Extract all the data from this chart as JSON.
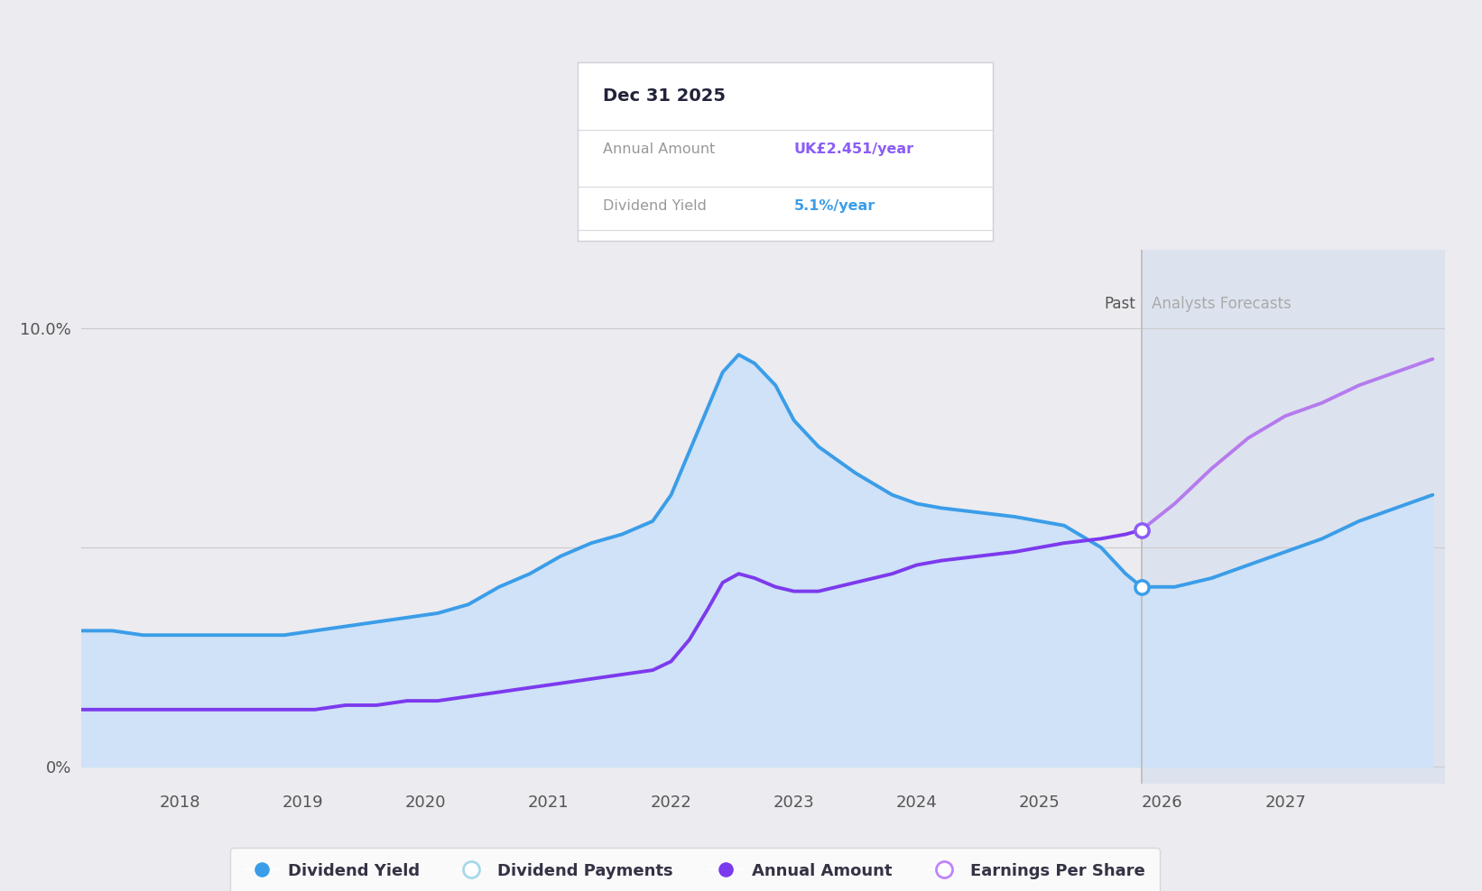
{
  "background_color": "#ebebf0",
  "plot_bg_color": "#ebebf0",
  "x_min": 2017.2,
  "x_max": 2028.3,
  "y_min": -0.004,
  "y_max": 0.118,
  "xtick_years": [
    2018,
    2019,
    2020,
    2021,
    2022,
    2023,
    2024,
    2025,
    2026,
    2027
  ],
  "past_line_x": 2025.83,
  "forecast_shade_color": "#dde3ee",
  "tooltip": {
    "date": "Dec 31 2025",
    "annual_amount_label": "Annual Amount",
    "annual_amount_value": "UK£2.451/year",
    "annual_amount_color": "#8b5cf6",
    "dividend_yield_label": "Dividend Yield",
    "dividend_yield_value": "5.1%/year",
    "dividend_yield_color": "#3b9de8"
  },
  "dividend_yield_color": "#3b9de8",
  "dividend_yield_fill_color": "#cfe2f7",
  "annual_amount_color_past": "#7c3aed",
  "annual_amount_color_forecast": "#b57bee",
  "dot_color_blue": "#3b9de8",
  "dot_color_purple": "#8b5cf6",
  "dividend_yield_x": [
    2017.2,
    2017.45,
    2017.7,
    2018.0,
    2018.3,
    2018.6,
    2018.85,
    2019.1,
    2019.35,
    2019.6,
    2019.85,
    2020.1,
    2020.35,
    2020.6,
    2020.85,
    2021.1,
    2021.35,
    2021.6,
    2021.85,
    2022.0,
    2022.15,
    2022.3,
    2022.42,
    2022.55,
    2022.68,
    2022.85,
    2023.0,
    2023.2,
    2023.5,
    2023.8,
    2024.0,
    2024.2,
    2024.5,
    2024.8,
    2025.0,
    2025.2,
    2025.5,
    2025.7,
    2025.83,
    2026.1,
    2026.4,
    2026.7,
    2027.0,
    2027.3,
    2027.6,
    2027.9,
    2028.2
  ],
  "dividend_yield_y": [
    0.031,
    0.031,
    0.03,
    0.03,
    0.03,
    0.03,
    0.03,
    0.031,
    0.032,
    0.033,
    0.034,
    0.035,
    0.037,
    0.041,
    0.044,
    0.048,
    0.051,
    0.053,
    0.056,
    0.062,
    0.072,
    0.082,
    0.09,
    0.094,
    0.092,
    0.087,
    0.079,
    0.073,
    0.067,
    0.062,
    0.06,
    0.059,
    0.058,
    0.057,
    0.056,
    0.055,
    0.05,
    0.044,
    0.041,
    0.041,
    0.043,
    0.046,
    0.049,
    0.052,
    0.056,
    0.059,
    0.062
  ],
  "annual_amount_x": [
    2017.2,
    2017.45,
    2017.7,
    2018.0,
    2018.3,
    2018.6,
    2018.85,
    2019.1,
    2019.35,
    2019.6,
    2019.85,
    2020.1,
    2020.35,
    2020.6,
    2020.85,
    2021.1,
    2021.35,
    2021.6,
    2021.85,
    2022.0,
    2022.15,
    2022.3,
    2022.42,
    2022.55,
    2022.68,
    2022.85,
    2023.0,
    2023.2,
    2023.5,
    2023.8,
    2024.0,
    2024.2,
    2024.5,
    2024.8,
    2025.0,
    2025.2,
    2025.5,
    2025.7,
    2025.83,
    2026.1,
    2026.4,
    2026.7,
    2027.0,
    2027.3,
    2027.6,
    2027.9,
    2028.2
  ],
  "annual_amount_y": [
    0.013,
    0.013,
    0.013,
    0.013,
    0.013,
    0.013,
    0.013,
    0.013,
    0.014,
    0.014,
    0.015,
    0.015,
    0.016,
    0.017,
    0.018,
    0.019,
    0.02,
    0.021,
    0.022,
    0.024,
    0.029,
    0.036,
    0.042,
    0.044,
    0.043,
    0.041,
    0.04,
    0.04,
    0.042,
    0.044,
    0.046,
    0.047,
    0.048,
    0.049,
    0.05,
    0.051,
    0.052,
    0.053,
    0.054,
    0.06,
    0.068,
    0.075,
    0.08,
    0.083,
    0.087,
    0.09,
    0.093
  ],
  "legend": [
    {
      "label": "Dividend Yield",
      "color": "#3b9de8",
      "filled": true
    },
    {
      "label": "Dividend Payments",
      "color": "#a8d8ea",
      "filled": false
    },
    {
      "label": "Annual Amount",
      "color": "#7c3aed",
      "filled": true
    },
    {
      "label": "Earnings Per Share",
      "color": "#c084fc",
      "filled": false
    }
  ]
}
